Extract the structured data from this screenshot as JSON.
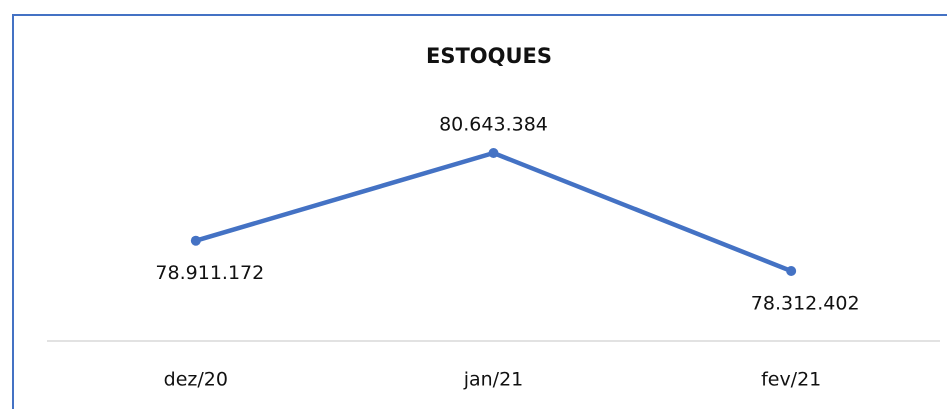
{
  "chart_data": {
    "type": "line",
    "title": "ESTOQUES",
    "categories": [
      "dez/20",
      "jan/21",
      "fev/21"
    ],
    "series": [
      {
        "name": null,
        "color": "#4472c4",
        "values": [
          78911172,
          80643384,
          78312402
        ],
        "value_labels": [
          "78.911.172",
          "80.643.384",
          "78.312.402"
        ]
      }
    ]
  }
}
